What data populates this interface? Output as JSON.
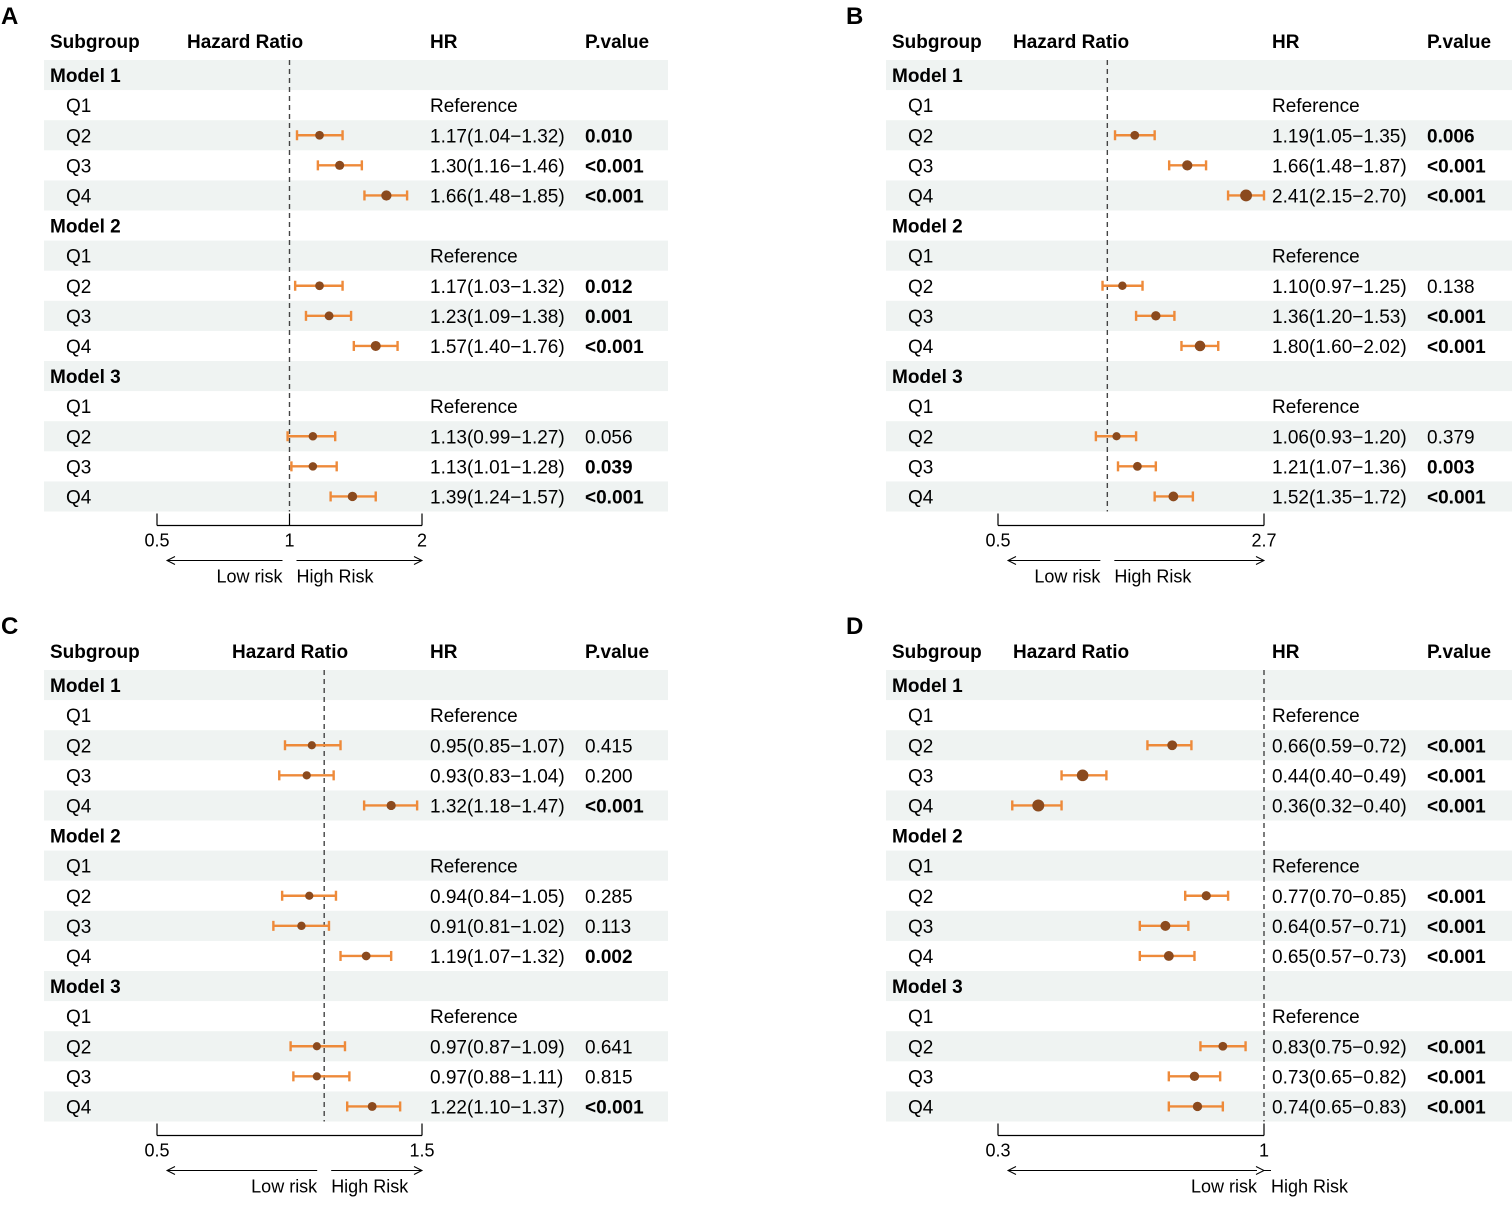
{
  "figure_title": "",
  "colors": {
    "point": "#8b4a1e",
    "ci": "#ee8a3a",
    "stripe": "#eff3f2",
    "axis": "#000000",
    "refline": "#444444"
  },
  "chart_data": [
    {
      "panel": "A",
      "type": "forest",
      "headers": {
        "subgroup": "Subgroup",
        "hazard_ratio": "Hazard Ratio",
        "hr": "HR",
        "pvalue": "P.value"
      },
      "xlim": [
        0.5,
        2
      ],
      "reference_value": 1,
      "ticks": [
        0.5,
        1,
        2
      ],
      "tick_labels": [
        "0.5",
        "1",
        "2"
      ],
      "xscale": "log",
      "low_label": "Low risk",
      "high_label": "High Risk",
      "rows": [
        {
          "label": "Model 1",
          "header": true
        },
        {
          "label": "Q1",
          "hr_text": "Reference"
        },
        {
          "label": "Q2",
          "hr": 1.17,
          "lo": 1.04,
          "hi": 1.32,
          "hr_text": "1.17(1.04−1.32)",
          "p": "0.010",
          "bold": true
        },
        {
          "label": "Q3",
          "hr": 1.3,
          "lo": 1.16,
          "hi": 1.46,
          "hr_text": "1.30(1.16−1.46)",
          "p": "<0.001",
          "bold": true
        },
        {
          "label": "Q4",
          "hr": 1.66,
          "lo": 1.48,
          "hi": 1.85,
          "hr_text": "1.66(1.48−1.85)",
          "p": "<0.001",
          "bold": true
        },
        {
          "label": "Model 2",
          "header": true
        },
        {
          "label": "Q1",
          "hr_text": "Reference"
        },
        {
          "label": "Q2",
          "hr": 1.17,
          "lo": 1.03,
          "hi": 1.32,
          "hr_text": "1.17(1.03−1.32)",
          "p": "0.012",
          "bold": true
        },
        {
          "label": "Q3",
          "hr": 1.23,
          "lo": 1.09,
          "hi": 1.38,
          "hr_text": "1.23(1.09−1.38)",
          "p": "0.001",
          "bold": true
        },
        {
          "label": "Q4",
          "hr": 1.57,
          "lo": 1.4,
          "hi": 1.76,
          "hr_text": "1.57(1.40−1.76)",
          "p": "<0.001",
          "bold": true
        },
        {
          "label": "Model 3",
          "header": true
        },
        {
          "label": "Q1",
          "hr_text": "Reference"
        },
        {
          "label": "Q2",
          "hr": 1.13,
          "lo": 0.99,
          "hi": 1.27,
          "hr_text": "1.13(0.99−1.27)",
          "p": "0.056",
          "bold": false
        },
        {
          "label": "Q3",
          "hr": 1.13,
          "lo": 1.01,
          "hi": 1.28,
          "hr_text": "1.13(1.01−1.28)",
          "p": "0.039",
          "bold": true
        },
        {
          "label": "Q4",
          "hr": 1.39,
          "lo": 1.24,
          "hi": 1.57,
          "hr_text": "1.39(1.24−1.57)",
          "p": "<0.001",
          "bold": true
        }
      ]
    },
    {
      "panel": "B",
      "type": "forest",
      "headers": {
        "subgroup": "Subgroup",
        "hazard_ratio": "Hazard Ratio",
        "hr": "HR",
        "pvalue": "P.value"
      },
      "xlim": [
        0.5,
        2.7
      ],
      "reference_value": 1,
      "ticks": [
        0.5,
        2.7
      ],
      "tick_labels": [
        "0.5",
        "2.7"
      ],
      "xscale": "log",
      "low_label": "Low risk",
      "high_label": "High Risk",
      "rows": [
        {
          "label": "Model 1",
          "header": true
        },
        {
          "label": "Q1",
          "hr_text": "Reference"
        },
        {
          "label": "Q2",
          "hr": 1.19,
          "lo": 1.05,
          "hi": 1.35,
          "hr_text": "1.19(1.05−1.35)",
          "p": "0.006",
          "bold": true
        },
        {
          "label": "Q3",
          "hr": 1.66,
          "lo": 1.48,
          "hi": 1.87,
          "hr_text": "1.66(1.48−1.87)",
          "p": "<0.001",
          "bold": true
        },
        {
          "label": "Q4",
          "hr": 2.41,
          "lo": 2.15,
          "hi": 2.7,
          "hr_text": "2.41(2.15−2.70)",
          "p": "<0.001",
          "bold": true
        },
        {
          "label": "Model 2",
          "header": true
        },
        {
          "label": "Q1",
          "hr_text": "Reference"
        },
        {
          "label": "Q2",
          "hr": 1.1,
          "lo": 0.97,
          "hi": 1.25,
          "hr_text": "1.10(0.97−1.25)",
          "p": "0.138",
          "bold": false
        },
        {
          "label": "Q3",
          "hr": 1.36,
          "lo": 1.2,
          "hi": 1.53,
          "hr_text": "1.36(1.20−1.53)",
          "p": "<0.001",
          "bold": true
        },
        {
          "label": "Q4",
          "hr": 1.8,
          "lo": 1.6,
          "hi": 2.02,
          "hr_text": "1.80(1.60−2.02)",
          "p": "<0.001",
          "bold": true
        },
        {
          "label": "Model 3",
          "header": true
        },
        {
          "label": "Q1",
          "hr_text": "Reference"
        },
        {
          "label": "Q2",
          "hr": 1.06,
          "lo": 0.93,
          "hi": 1.2,
          "hr_text": "1.06(0.93−1.20)",
          "p": "0.379",
          "bold": false
        },
        {
          "label": "Q3",
          "hr": 1.21,
          "lo": 1.07,
          "hi": 1.36,
          "hr_text": "1.21(1.07−1.36)",
          "p": "0.003",
          "bold": true
        },
        {
          "label": "Q4",
          "hr": 1.52,
          "lo": 1.35,
          "hi": 1.72,
          "hr_text": "1.52(1.35−1.72)",
          "p": "<0.001",
          "bold": true
        }
      ]
    },
    {
      "panel": "C",
      "type": "forest",
      "headers": {
        "subgroup": "Subgroup",
        "hazard_ratio": "Hazard Ratio",
        "hr": "HR",
        "pvalue": "P.value"
      },
      "xlim": [
        0.5,
        1.5
      ],
      "reference_value": 1,
      "ticks": [
        0.5,
        1.5
      ],
      "tick_labels": [
        "0.5",
        "1.5"
      ],
      "xscale": "log",
      "low_label": "Low risk",
      "high_label": "High Risk",
      "rows": [
        {
          "label": "Model 1",
          "header": true
        },
        {
          "label": "Q1",
          "hr_text": "Reference"
        },
        {
          "label": "Q2",
          "hr": 0.95,
          "lo": 0.85,
          "hi": 1.07,
          "hr_text": "0.95(0.85−1.07)",
          "p": "0.415",
          "bold": false
        },
        {
          "label": "Q3",
          "hr": 0.93,
          "lo": 0.83,
          "hi": 1.04,
          "hr_text": "0.93(0.83−1.04)",
          "p": "0.200",
          "bold": false
        },
        {
          "label": "Q4",
          "hr": 1.32,
          "lo": 1.18,
          "hi": 1.47,
          "hr_text": "1.32(1.18−1.47)",
          "p": "<0.001",
          "bold": true
        },
        {
          "label": "Model 2",
          "header": true
        },
        {
          "label": "Q1",
          "hr_text": "Reference"
        },
        {
          "label": "Q2",
          "hr": 0.94,
          "lo": 0.84,
          "hi": 1.05,
          "hr_text": "0.94(0.84−1.05)",
          "p": "0.285",
          "bold": false
        },
        {
          "label": "Q3",
          "hr": 0.91,
          "lo": 0.81,
          "hi": 1.02,
          "hr_text": "0.91(0.81−1.02)",
          "p": "0.113",
          "bold": false
        },
        {
          "label": "Q4",
          "hr": 1.19,
          "lo": 1.07,
          "hi": 1.32,
          "hr_text": "1.19(1.07−1.32)",
          "p": "0.002",
          "bold": true
        },
        {
          "label": "Model 3",
          "header": true
        },
        {
          "label": "Q1",
          "hr_text": "Reference"
        },
        {
          "label": "Q2",
          "hr": 0.97,
          "lo": 0.87,
          "hi": 1.09,
          "hr_text": "0.97(0.87−1.09)",
          "p": "0.641",
          "bold": false
        },
        {
          "label": "Q3",
          "hr": 0.97,
          "lo": 0.88,
          "hi": 1.11,
          "hr_text": "0.97(0.88−1.11)",
          "p": "0.815",
          "bold": false
        },
        {
          "label": "Q4",
          "hr": 1.22,
          "lo": 1.1,
          "hi": 1.37,
          "hr_text": "1.22(1.10−1.37)",
          "p": "<0.001",
          "bold": true
        }
      ]
    },
    {
      "panel": "D",
      "type": "forest",
      "headers": {
        "subgroup": "Subgroup",
        "hazard_ratio": "Hazard Ratio",
        "hr": "HR",
        "pvalue": "P.value"
      },
      "xlim": [
        0.3,
        1
      ],
      "reference_value": 1,
      "ticks": [
        0.3,
        1
      ],
      "tick_labels": [
        "0.3",
        "1"
      ],
      "xscale": "log",
      "low_label": "Low risk",
      "high_label": "High Risk",
      "rows": [
        {
          "label": "Model 1",
          "header": true
        },
        {
          "label": "Q1",
          "hr_text": "Reference"
        },
        {
          "label": "Q2",
          "hr": 0.66,
          "lo": 0.59,
          "hi": 0.72,
          "hr_text": "0.66(0.59−0.72)",
          "p": "<0.001",
          "bold": true
        },
        {
          "label": "Q3",
          "hr": 0.44,
          "lo": 0.4,
          "hi": 0.49,
          "hr_text": "0.44(0.40−0.49)",
          "p": "<0.001",
          "bold": true
        },
        {
          "label": "Q4",
          "hr": 0.36,
          "lo": 0.32,
          "hi": 0.4,
          "hr_text": "0.36(0.32−0.40)",
          "p": "<0.001",
          "bold": true
        },
        {
          "label": "Model 2",
          "header": true
        },
        {
          "label": "Q1",
          "hr_text": "Reference"
        },
        {
          "label": "Q2",
          "hr": 0.77,
          "lo": 0.7,
          "hi": 0.85,
          "hr_text": "0.77(0.70−0.85)",
          "p": "<0.001",
          "bold": true
        },
        {
          "label": "Q3",
          "hr": 0.64,
          "lo": 0.57,
          "hi": 0.71,
          "hr_text": "0.64(0.57−0.71)",
          "p": "<0.001",
          "bold": true
        },
        {
          "label": "Q4",
          "hr": 0.65,
          "lo": 0.57,
          "hi": 0.73,
          "hr_text": "0.65(0.57−0.73)",
          "p": "<0.001",
          "bold": true
        },
        {
          "label": "Model 3",
          "header": true
        },
        {
          "label": "Q1",
          "hr_text": "Reference"
        },
        {
          "label": "Q2",
          "hr": 0.83,
          "lo": 0.75,
          "hi": 0.92,
          "hr_text": "0.83(0.75−0.92)",
          "p": "<0.001",
          "bold": true
        },
        {
          "label": "Q3",
          "hr": 0.73,
          "lo": 0.65,
          "hi": 0.82,
          "hr_text": "0.73(0.65−0.82)",
          "p": "<0.001",
          "bold": true
        },
        {
          "label": "Q4",
          "hr": 0.74,
          "lo": 0.65,
          "hi": 0.83,
          "hr_text": "0.74(0.65−0.83)",
          "p": "<0.001",
          "bold": true
        }
      ]
    }
  ]
}
